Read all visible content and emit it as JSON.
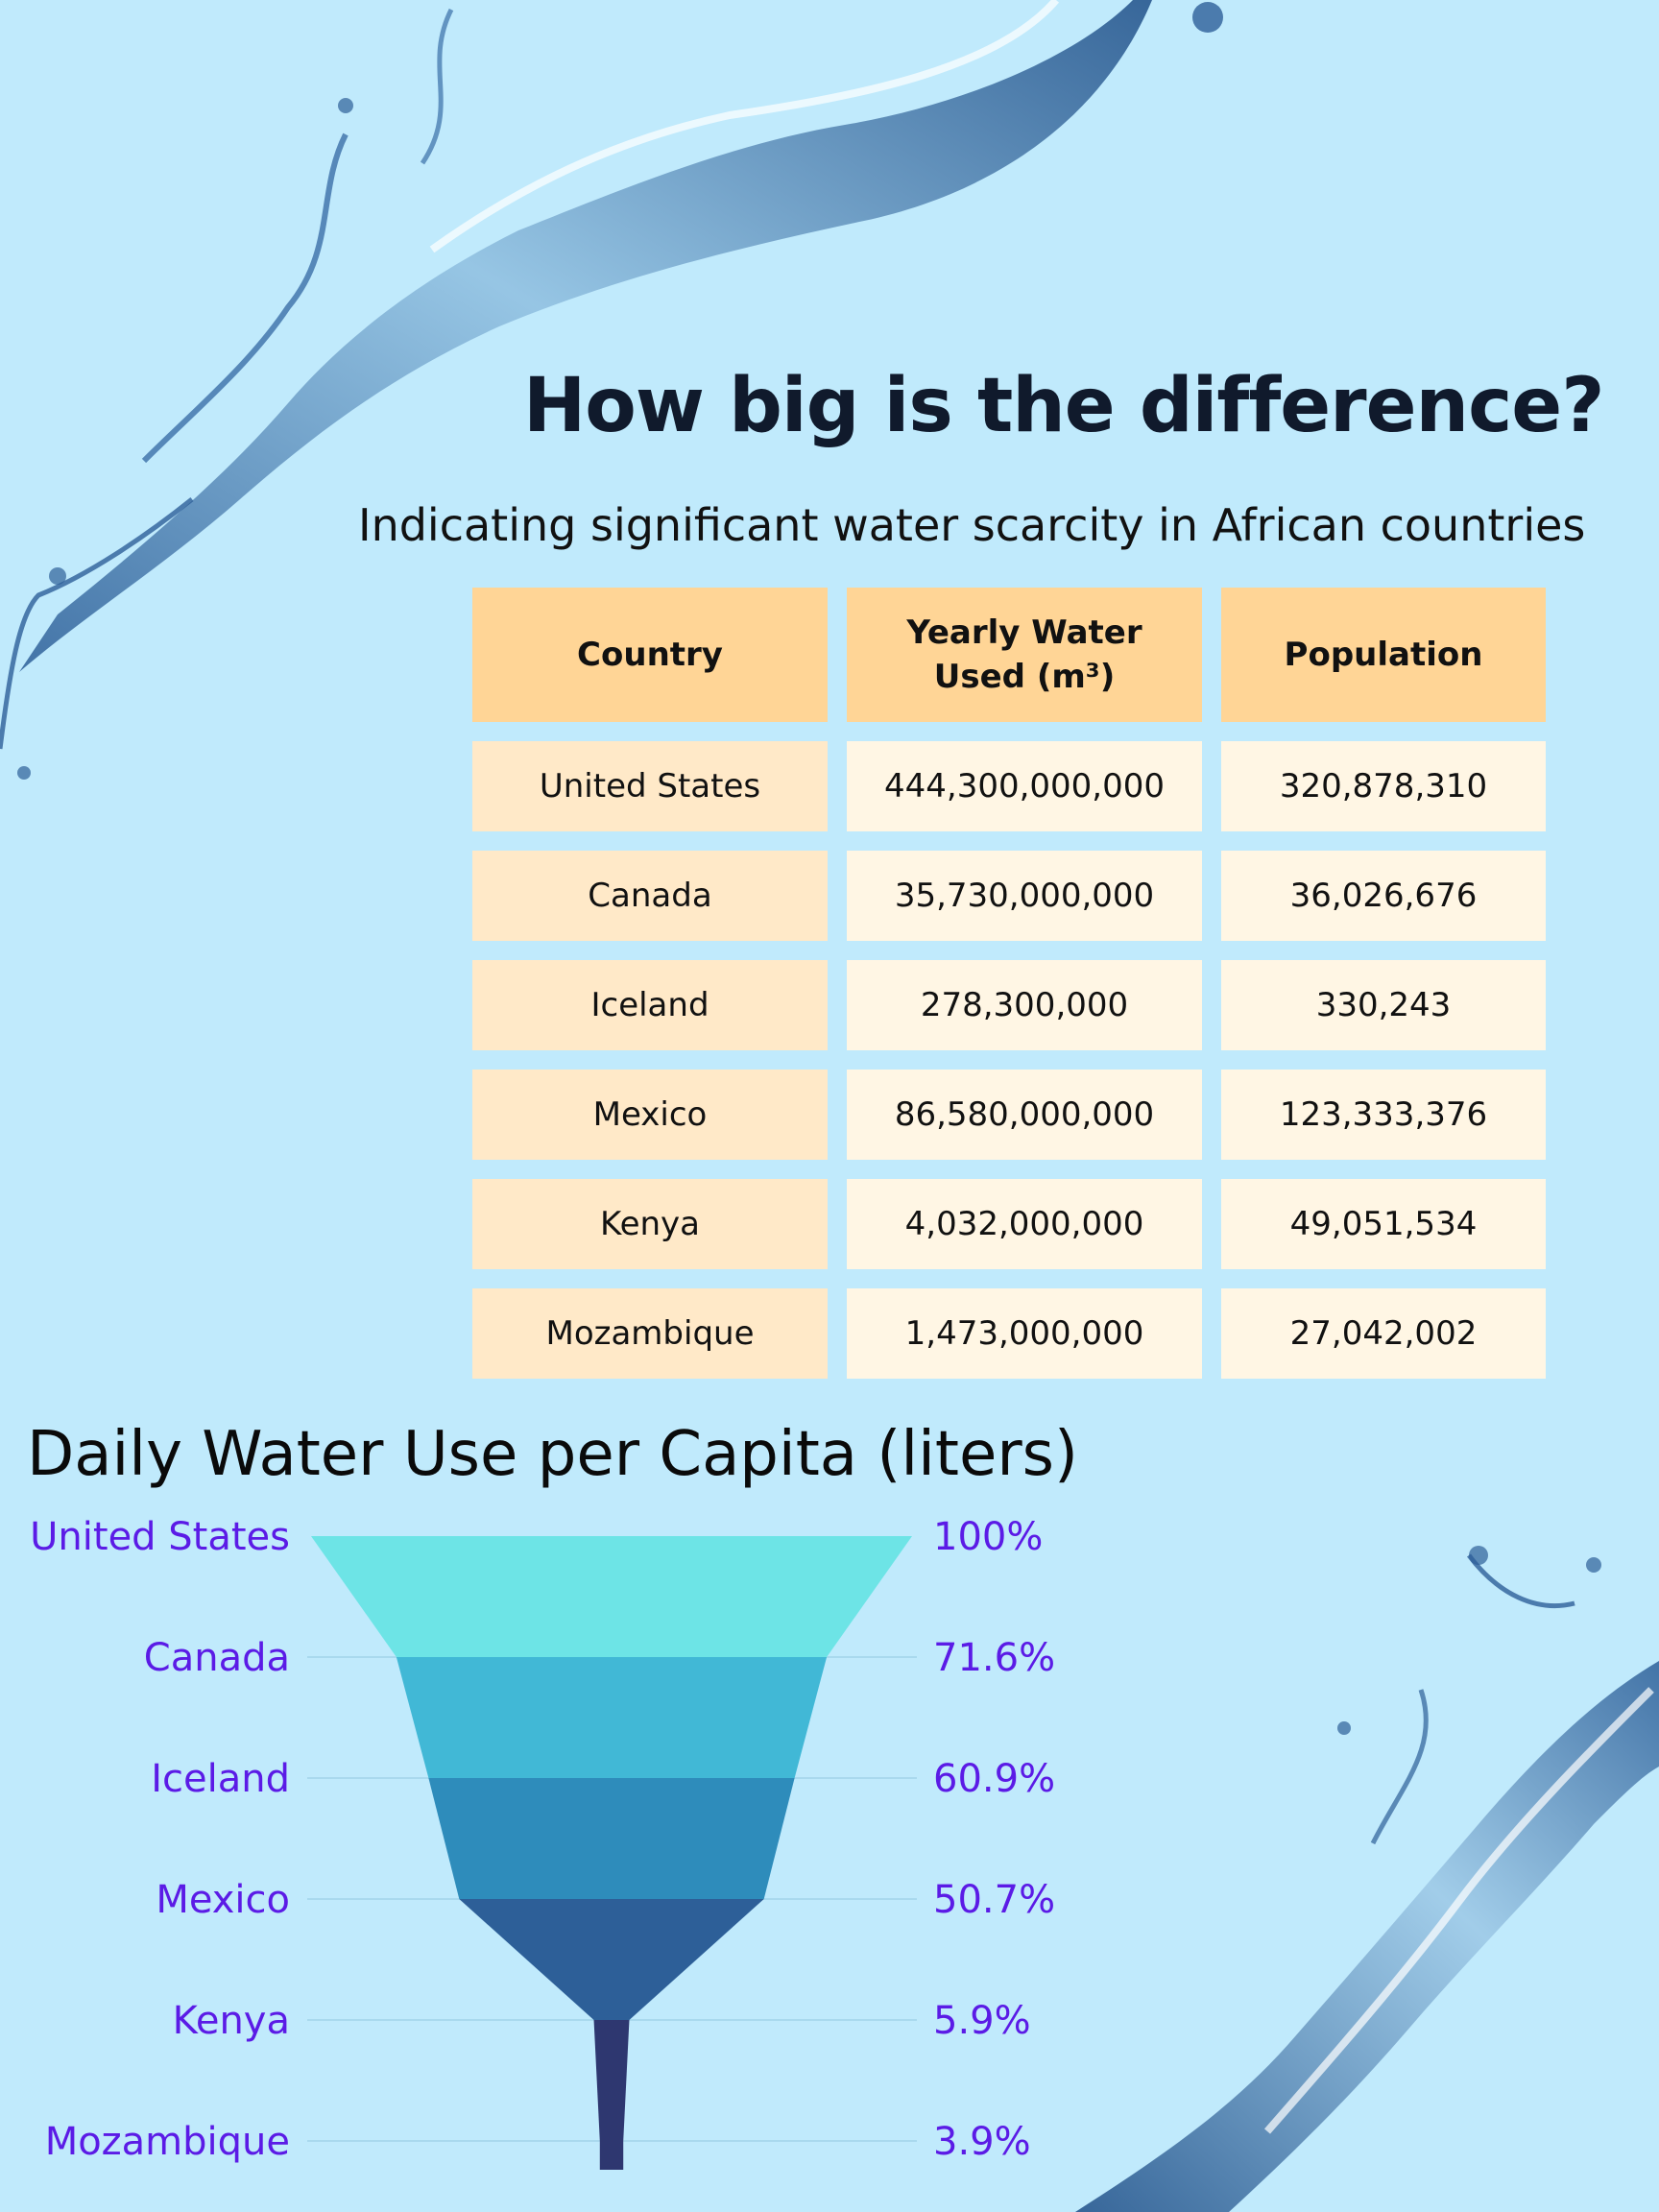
{
  "title": "How big is the difference?",
  "subtitle": "Indicating significant water scarcity in African countries",
  "table": {
    "headers": [
      "Country",
      "Yearly Water Used (m³)",
      "Population"
    ],
    "rows": [
      [
        "United States",
        "444,300,000,000",
        "320,878,310"
      ],
      [
        "Canada",
        "35,730,000,000",
        "36,026,676"
      ],
      [
        "Iceland",
        "278,300,000",
        "330,243"
      ],
      [
        "Mexico",
        "86,580,000,000",
        "123,333,376"
      ],
      [
        "Kenya",
        "4,032,000,000",
        "49,051,534"
      ],
      [
        "Mozambique",
        "1,473,000,000",
        "27,042,002"
      ]
    ]
  },
  "colors": {
    "background": "#c0eafc",
    "header_cell": "#ffd596",
    "country_cell": "#ffe9c8",
    "value_cell": "#fff6e4",
    "funnel_label": "#5b1be6",
    "funnel_segments": [
      "#6de4e6",
      "#41b8d6",
      "#2e8cbb",
      "#2d5f98",
      "#2e3770",
      "#2e3770"
    ]
  },
  "chart_data": {
    "type": "funnel",
    "title": "Daily Water Use per Capita (liters)",
    "categories": [
      "United States",
      "Canada",
      "Iceland",
      "Mexico",
      "Kenya",
      "Mozambique"
    ],
    "values": [
      100,
      71.6,
      60.9,
      50.7,
      5.9,
      3.9
    ],
    "value_labels": [
      "100%",
      "71.6%",
      "60.9%",
      "50.7%",
      "5.9%",
      "3.9%"
    ],
    "unit": "%"
  }
}
